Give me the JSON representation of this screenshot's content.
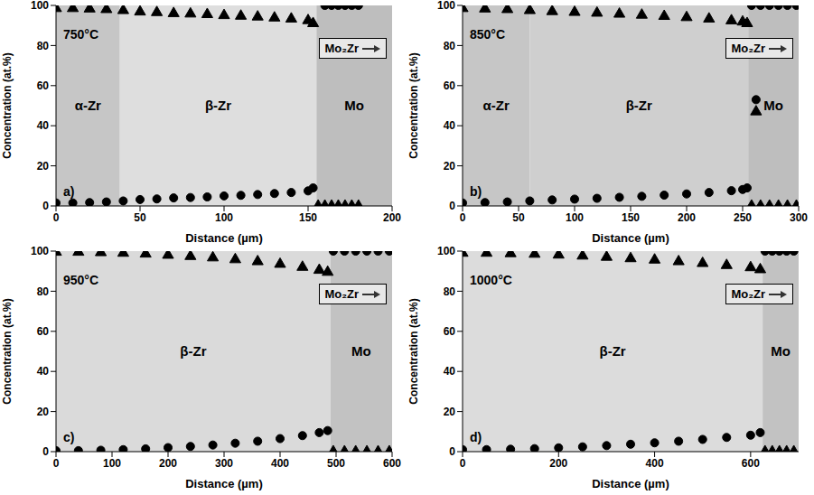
{
  "chart_data": [
    {
      "type": "scatter",
      "title": "750°C",
      "panel": "a)",
      "x_label": "Distance (µm)",
      "y_label": "Concentration (at.%)",
      "xlim": [
        0,
        200
      ],
      "xticks": [
        0,
        50,
        100,
        150,
        200
      ],
      "ylim": [
        0,
        100
      ],
      "yticks": [
        0,
        20,
        40,
        60,
        80,
        100
      ],
      "grid": false,
      "annotations": [
        {
          "text": "Mo₂Zr"
        }
      ],
      "regions": [
        {
          "label": "α-Zr",
          "from": 0,
          "to": 38,
          "color": "#c6c6c6"
        },
        {
          "label": "β-Zr",
          "from": 38,
          "to": 155,
          "color": "#dedede"
        },
        {
          "label": "Mo",
          "from": 155,
          "to": 200,
          "color": "#bebebe"
        }
      ],
      "series": [
        {
          "marker": "triangle",
          "color": "#000000",
          "x": [
            0,
            10,
            20,
            30,
            40,
            50,
            60,
            70,
            80,
            90,
            100,
            110,
            120,
            130,
            140,
            150,
            153,
            156,
            160,
            164,
            168,
            172,
            176,
            180
          ],
          "values": [
            98.5,
            98.5,
            98.3,
            98,
            97.5,
            96.8,
            96.5,
            96,
            95.8,
            95.5,
            95,
            94.7,
            94.3,
            93.8,
            93.3,
            92.5,
            91,
            0,
            0,
            0,
            0,
            0,
            0,
            0
          ]
        },
        {
          "marker": "circle",
          "color": "#000000",
          "x": [
            0,
            10,
            20,
            30,
            40,
            50,
            60,
            70,
            80,
            90,
            100,
            110,
            120,
            130,
            140,
            150,
            153,
            160,
            164,
            168,
            172,
            176,
            180
          ],
          "values": [
            1.5,
            1.5,
            1.7,
            2,
            2.5,
            3.2,
            3.5,
            4,
            4.2,
            4.5,
            5,
            5.3,
            5.7,
            6.2,
            6.7,
            7.5,
            9,
            100,
            100,
            100,
            100,
            100,
            100
          ]
        }
      ]
    },
    {
      "type": "scatter",
      "title": "850°C",
      "panel": "b)",
      "x_label": "Distance (µm)",
      "y_label": "Concentration (at.%)",
      "xlim": [
        0,
        300
      ],
      "xticks": [
        0,
        50,
        100,
        150,
        200,
        250,
        300
      ],
      "ylim": [
        0,
        100
      ],
      "yticks": [
        0,
        20,
        40,
        60,
        80,
        100
      ],
      "grid": false,
      "annotations": [
        {
          "text": "Mo₂Zr"
        }
      ],
      "regions": [
        {
          "label": "α-Zr",
          "from": 0,
          "to": 60,
          "color": "#c6c6c6"
        },
        {
          "label": "β-Zr",
          "from": 60,
          "to": 255,
          "color": "#cfcfcf"
        },
        {
          "label": "Mo",
          "from": 255,
          "to": 300,
          "color": "#bebebe"
        }
      ],
      "series": [
        {
          "marker": "triangle",
          "color": "#000000",
          "x": [
            0,
            20,
            40,
            60,
            80,
            100,
            120,
            140,
            160,
            180,
            200,
            220,
            240,
            250,
            254,
            262,
            258,
            266,
            274,
            282,
            290,
            298
          ],
          "values": [
            98.5,
            98.3,
            98,
            97.5,
            97,
            96.6,
            96.2,
            95.7,
            95.2,
            94.6,
            94,
            93.3,
            92.4,
            91.8,
            91,
            47,
            0,
            0,
            0,
            0,
            0,
            0
          ]
        },
        {
          "marker": "circle",
          "color": "#000000",
          "x": [
            0,
            20,
            40,
            60,
            80,
            100,
            120,
            140,
            160,
            180,
            200,
            220,
            240,
            250,
            254,
            262,
            258,
            266,
            274,
            282,
            290,
            298
          ],
          "values": [
            1.5,
            1.7,
            2,
            2.5,
            3,
            3.4,
            3.8,
            4.3,
            4.8,
            5.4,
            6,
            6.7,
            7.6,
            8.2,
            9,
            53,
            100,
            100,
            100,
            100,
            100,
            100
          ]
        }
      ]
    },
    {
      "type": "scatter",
      "title": "950°C",
      "panel": "c)",
      "x_label": "Distance (µm)",
      "y_label": "Concentration (at.%)",
      "xlim": [
        0,
        600
      ],
      "xticks": [
        0,
        100,
        200,
        300,
        400,
        500,
        600
      ],
      "ylim": [
        0,
        100
      ],
      "yticks": [
        0,
        20,
        40,
        60,
        80,
        100
      ],
      "grid": false,
      "annotations": [
        {
          "text": "Mo₂Zr"
        }
      ],
      "regions": [
        {
          "label": "β-Zr",
          "from": 0,
          "to": 490,
          "color": "#dadada"
        },
        {
          "label": "Mo",
          "from": 490,
          "to": 600,
          "color": "#c2c2c2"
        }
      ],
      "series": [
        {
          "marker": "triangle",
          "color": "#000000",
          "x": [
            0,
            40,
            80,
            120,
            160,
            200,
            240,
            280,
            320,
            360,
            400,
            440,
            470,
            485,
            495,
            515,
            535,
            555,
            575,
            595
          ],
          "values": [
            99.5,
            99.5,
            99.3,
            99,
            98.6,
            98,
            97.4,
            96.7,
            95.8,
            94.8,
            93.5,
            92,
            90.5,
            89.5,
            0,
            0,
            0,
            0,
            0,
            0
          ]
        },
        {
          "marker": "circle",
          "color": "#000000",
          "x": [
            0,
            40,
            80,
            120,
            160,
            200,
            240,
            280,
            320,
            360,
            400,
            440,
            470,
            485,
            495,
            515,
            535,
            555,
            575,
            595
          ],
          "values": [
            0.5,
            0.5,
            0.7,
            1,
            1.4,
            2,
            2.6,
            3.3,
            4.2,
            5.2,
            6.5,
            8,
            9.5,
            10.5,
            100,
            100,
            100,
            100,
            100,
            100
          ]
        }
      ]
    },
    {
      "type": "scatter",
      "title": "1000°C",
      "panel": "d)",
      "x_label": "Distance (µm)",
      "y_label": "Concentration (at.%)",
      "xlim": [
        0,
        700
      ],
      "xticks": [
        0,
        200,
        400,
        600
      ],
      "ylim": [
        0,
        100
      ],
      "yticks": [
        0,
        20,
        40,
        60,
        80,
        100
      ],
      "grid": false,
      "annotations": [
        {
          "text": "Mo₂Zr"
        }
      ],
      "regions": [
        {
          "label": "β-Zr",
          "from": 0,
          "to": 625,
          "color": "#dcdcdc"
        },
        {
          "label": "Mo",
          "from": 625,
          "to": 700,
          "color": "#c2c2c2"
        }
      ],
      "series": [
        {
          "marker": "triangle",
          "color": "#000000",
          "x": [
            0,
            50,
            100,
            150,
            200,
            250,
            300,
            350,
            400,
            450,
            500,
            550,
            600,
            620,
            630,
            645,
            660,
            675,
            690
          ],
          "values": [
            99,
            99,
            98.8,
            98.5,
            98.1,
            97.6,
            97,
            96.3,
            95.6,
            94.8,
            93.9,
            92.9,
            91.8,
            90.8,
            0,
            0,
            0,
            0,
            0
          ]
        },
        {
          "marker": "circle",
          "color": "#000000",
          "x": [
            0,
            50,
            100,
            150,
            200,
            250,
            300,
            350,
            400,
            450,
            500,
            550,
            600,
            620,
            630,
            645,
            660,
            675,
            690
          ],
          "values": [
            1,
            1,
            1.2,
            1.5,
            1.9,
            2.4,
            3,
            3.7,
            4.4,
            5.2,
            6.1,
            7.1,
            8.2,
            9.5,
            100,
            100,
            100,
            100,
            100
          ]
        }
      ]
    }
  ]
}
